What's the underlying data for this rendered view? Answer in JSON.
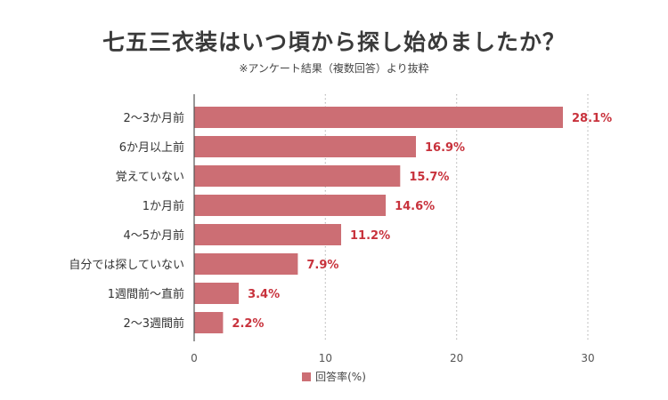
{
  "header": {
    "title": "七五三衣装はいつ頃から探し始めましたか？",
    "subtitle": "※アンケート結果（複数回答）より抜粋"
  },
  "colors": {
    "bar": "#cc6e74",
    "value_label": "#c8323c",
    "axis": "#555555",
    "grid": "#bbbbbb"
  },
  "chart_data": {
    "type": "bar",
    "orientation": "horizontal",
    "title": "七五三衣装はいつ頃から探し始めましたか？",
    "subtitle": "※アンケート結果（複数回答）より抜粋",
    "categories": [
      "2〜3か月前",
      "6か月以上前",
      "覚えていない",
      "1か月前",
      "4〜5か月前",
      "自分では探していない",
      "1週間前〜直前",
      "2〜3週間前"
    ],
    "series": [
      {
        "name": "回答率(%)",
        "values": [
          28.1,
          16.9,
          15.7,
          14.6,
          11.2,
          7.9,
          3.4,
          2.2
        ],
        "value_labels": [
          "28.1%",
          "16.9%",
          "15.7%",
          "14.6%",
          "11.2%",
          "7.9%",
          "3.4%",
          "2.2%"
        ]
      }
    ],
    "xlim": [
      0,
      30
    ],
    "x_ticks": [
      "0",
      "10",
      "20",
      "30"
    ],
    "xlabel": "",
    "ylabel": "",
    "grid": "vertical dotted",
    "legend_position": "bottom"
  }
}
